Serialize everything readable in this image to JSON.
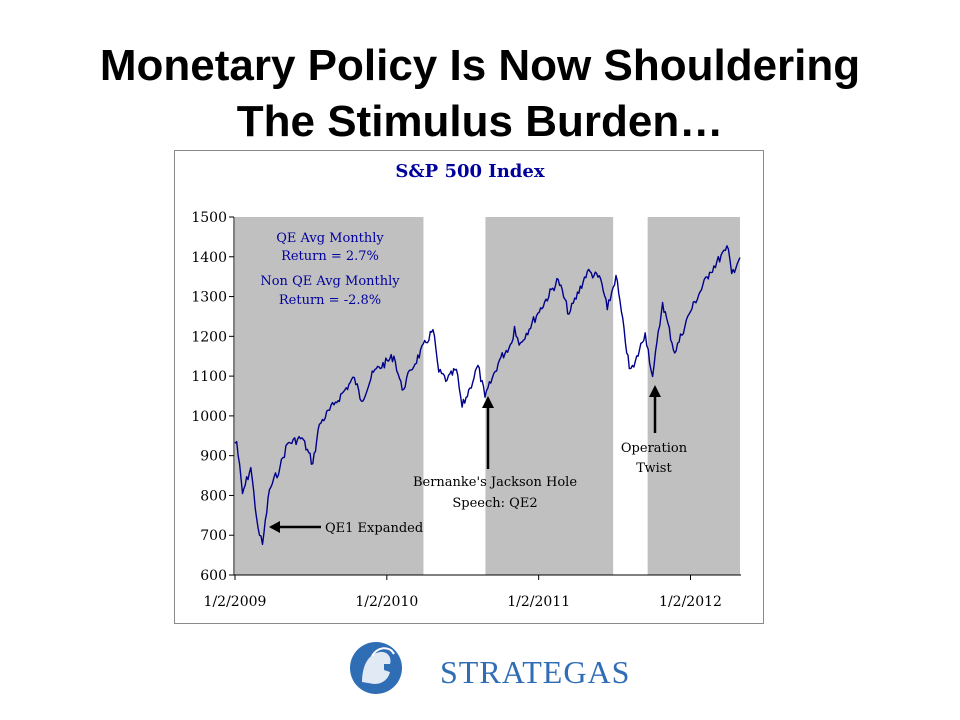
{
  "slide": {
    "title_line1": "Monetary Policy Is Now Shouldering",
    "title_line2": "The Stimulus Burden…"
  },
  "chart_data": {
    "type": "line",
    "title": "S&P 500 Index",
    "xlabel": "",
    "ylabel": "",
    "x_ticks": [
      "1/2/2009",
      "1/2/2010",
      "1/2/2011",
      "1/2/2012"
    ],
    "x_range": [
      "2009-01-02",
      "2012-04-30"
    ],
    "ylim": [
      600,
      1500
    ],
    "y_ticks": [
      600,
      700,
      800,
      900,
      1000,
      1100,
      1200,
      1300,
      1400,
      1500
    ],
    "grid": false,
    "line_color": "#00008b",
    "shade_color": "#c0c0c0",
    "qe_periods": [
      {
        "start": "2009-01-02",
        "end": "2010-03-31"
      },
      {
        "start": "2010-08-27",
        "end": "2011-06-30"
      },
      {
        "start": "2011-09-21",
        "end": "2012-04-30"
      }
    ],
    "series": [
      {
        "x": [
          "2009-01-02",
          "2009-01-06",
          "2009-01-20",
          "2009-02-09",
          "2009-02-23",
          "2009-03-02",
          "2009-03-09",
          "2009-03-26",
          "2009-04-20",
          "2009-05-08",
          "2009-06-12",
          "2009-07-08",
          "2009-07-24",
          "2009-08-28",
          "2009-09-23",
          "2009-10-16",
          "2009-11-02",
          "2009-12-01",
          "2010-01-19",
          "2010-02-08",
          "2010-03-01",
          "2010-04-23",
          "2010-05-07",
          "2010-05-27",
          "2010-06-18",
          "2010-07-02",
          "2010-07-21",
          "2010-08-09",
          "2010-08-26",
          "2010-09-30",
          "2010-10-29",
          "2010-11-05",
          "2010-11-16",
          "2010-12-31",
          "2011-02-18",
          "2011-03-16",
          "2011-04-29",
          "2011-05-31",
          "2011-06-16",
          "2011-07-07",
          "2011-08-08",
          "2011-08-19",
          "2011-09-15",
          "2011-10-03",
          "2011-10-27",
          "2011-11-25",
          "2011-12-30",
          "2012-02-17",
          "2012-03-26",
          "2012-04-02",
          "2012-04-10",
          "2012-04-30"
        ],
        "values": [
          931,
          935,
          805,
          870,
          743,
          700,
          677,
          815,
          870,
          930,
          945,
          880,
          979,
          1028,
          1065,
          1096,
          1037,
          1110,
          1150,
          1065,
          1115,
          1217,
          1110,
          1090,
          1117,
          1022,
          1070,
          1127,
          1047,
          1141,
          1183,
          1225,
          1178,
          1258,
          1343,
          1256,
          1363,
          1345,
          1267,
          1353,
          1119,
          1123,
          1209,
          1099,
          1285,
          1158,
          1257,
          1361,
          1416,
          1419,
          1358,
          1398
        ]
      }
    ],
    "annotations": {
      "qe_avg_line1": "QE Avg Monthly",
      "qe_avg_line2": "Return = 2.7%",
      "nonqe_avg_line1": "Non QE Avg Monthly",
      "nonqe_avg_line2": "Return = -2.8%",
      "qe1": "QE1 Expanded",
      "qe2_line1": "Bernanke's Jackson Hole",
      "qe2_line2": "Speech: QE2",
      "twist_line1": "Operation",
      "twist_line2": "Twist"
    }
  },
  "logo": {
    "text": "STRATEGAS",
    "color": "#2f6db5"
  }
}
